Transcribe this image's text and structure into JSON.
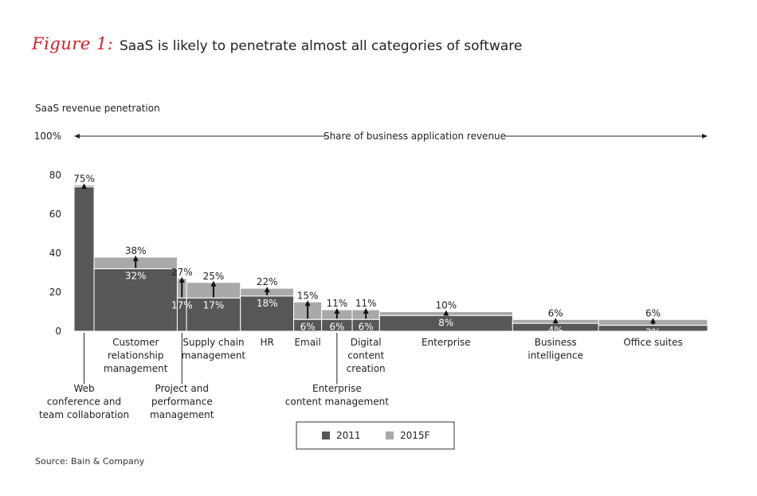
{
  "figure_label": "Figure 1:",
  "title": "SaaS is likely to penetrate almost all categories of software",
  "source": "Source: Bain & Company",
  "colors": {
    "s2011": "#575757",
    "s2015": "#a9a9a9",
    "accent": "#d71f26"
  },
  "chart_data": {
    "type": "bar",
    "subtype": "marimekko-variable-width",
    "ylabel": "SaaS revenue penetration",
    "xlabel": "Share of business application revenue",
    "ylim": [
      0,
      100
    ],
    "yticks": [
      {
        "v": 0,
        "label": "0"
      },
      {
        "v": 20,
        "label": "20"
      },
      {
        "v": 40,
        "label": "40"
      },
      {
        "v": 60,
        "label": "60"
      },
      {
        "v": 80,
        "label": "80"
      },
      {
        "v": 100,
        "label": "100%"
      }
    ],
    "legend": [
      "2011",
      "2015F"
    ],
    "legend_position": "bottom-right",
    "categories": [
      {
        "name": "Web conference and team collaboration",
        "label_lines": [
          "Web",
          "conference and",
          "team collaboration"
        ],
        "label_row": "lower",
        "width_share": 3.0,
        "v2011": 74,
        "v2015": 75,
        "label2011": "",
        "label2015": "75%"
      },
      {
        "name": "Customer relationship management",
        "label_lines": [
          "Customer",
          "relationship",
          "management"
        ],
        "label_row": "upper",
        "width_share": 12.5,
        "v2011": 32,
        "v2015": 38,
        "label2011": "32%",
        "label2015": "38%"
      },
      {
        "name": "Project and performance management",
        "label_lines": [
          "Project and",
          "performance",
          "management"
        ],
        "label_row": "lower",
        "width_share": 1.4,
        "v2011": 17,
        "v2015": 27,
        "label2011": "17%",
        "label2015": "27%"
      },
      {
        "name": "Supply chain management",
        "label_lines": [
          "Supply chain",
          "management"
        ],
        "label_row": "upper",
        "width_share": 8.1,
        "v2011": 17,
        "v2015": 25,
        "label2011": "17%",
        "label2015": "25%"
      },
      {
        "name": "HR",
        "label_lines": [
          "HR"
        ],
        "label_row": "upper",
        "width_share": 8.0,
        "v2011": 18,
        "v2015": 22,
        "label2011": "18%",
        "label2015": "22%"
      },
      {
        "name": "Email",
        "label_lines": [
          "Email"
        ],
        "label_row": "upper",
        "width_share": 4.2,
        "v2011": 6,
        "v2015": 15,
        "label2011": "6%",
        "label2015": "15%"
      },
      {
        "name": "Enterprise content management",
        "label_lines": [
          "Enterprise",
          "content management"
        ],
        "label_row": "lower",
        "width_share": 4.6,
        "v2011": 6,
        "v2015": 11,
        "label2011": "6%",
        "label2015": "11%"
      },
      {
        "name": "Digital content creation",
        "label_lines": [
          "Digital",
          "content",
          "creation"
        ],
        "label_row": "upper",
        "width_share": 4.1,
        "v2011": 6,
        "v2015": 11,
        "label2011": "6%",
        "label2015": "11%"
      },
      {
        "name": "Enterprise",
        "label_lines": [
          "Enterprise"
        ],
        "label_row": "upper",
        "width_share": 20.0,
        "v2011": 8,
        "v2015": 10,
        "label2011": "8%",
        "label2015": "10%"
      },
      {
        "name": "Business intelligence",
        "label_lines": [
          "Business",
          "intelligence"
        ],
        "label_row": "upper",
        "width_share": 12.9,
        "v2011": 4,
        "v2015": 6,
        "label2011": "4%",
        "label2015": "6%"
      },
      {
        "name": "Office suites",
        "label_lines": [
          "Office suites"
        ],
        "label_row": "upper",
        "width_share": 16.4,
        "v2011": 3,
        "v2015": 6,
        "label2011": "3%",
        "label2015": "6%"
      }
    ]
  }
}
